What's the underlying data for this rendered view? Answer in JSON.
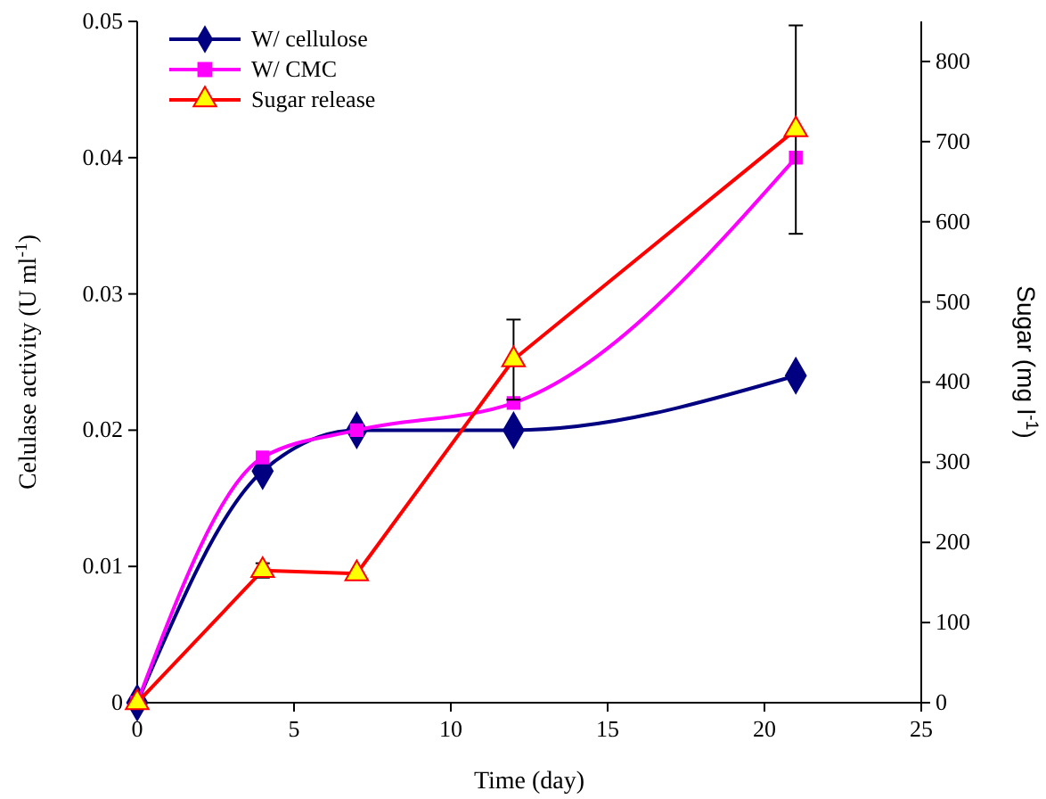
{
  "chart_data": {
    "type": "line",
    "xlabel": "Time (day)",
    "ylabel": "Celulase activity (U ml$^{-1}$)",
    "y2label": "Sugar (mg l$^{-1}$)",
    "x": [
      0,
      4,
      7,
      12,
      21
    ],
    "xlim": [
      0,
      25
    ],
    "xticks": [
      0,
      5,
      10,
      15,
      20,
      25
    ],
    "ylim": [
      0,
      0.05
    ],
    "yticks": [
      0,
      0.01,
      0.02,
      0.03,
      0.04,
      0.05
    ],
    "y2lim": [
      0,
      850
    ],
    "y2ticks": [
      0,
      100,
      200,
      300,
      400,
      500,
      600,
      700,
      800
    ],
    "grid": false,
    "legend": "top left",
    "series": [
      {
        "name": "W/ cellulose",
        "color": "#000080",
        "marker": "diamond",
        "values": [
          0,
          0.017,
          0.02,
          0.02,
          0.024
        ]
      },
      {
        "name": "W/ CMC",
        "color": "#ff00ff",
        "marker": "square",
        "values": [
          0,
          0.018,
          0.02,
          0.022,
          0.04
        ]
      },
      {
        "name": "Sugar release",
        "color": "#ff0000",
        "marker": "triangle",
        "axis": "y2",
        "values": [
          0,
          165,
          161,
          428,
          715
        ],
        "errors": [
          null,
          9,
          null,
          50,
          130
        ]
      }
    ]
  }
}
